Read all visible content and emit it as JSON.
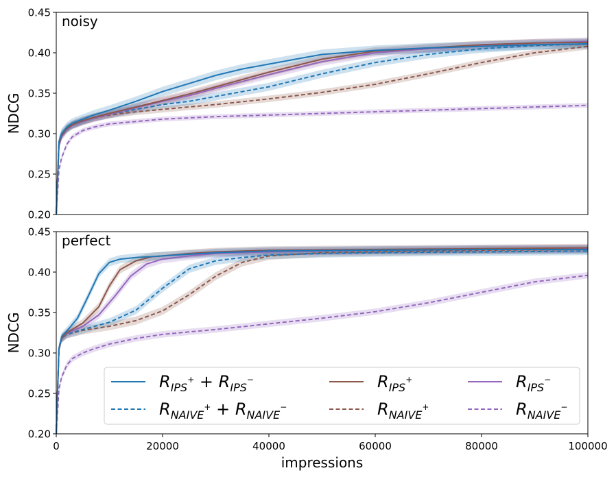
{
  "chart_data": {
    "type": "line",
    "x_label": "impressions",
    "y_label": "NDCG",
    "xlim": [
      0,
      100000
    ],
    "ylim": [
      0.2,
      0.45
    ],
    "x_ticks": [
      "0",
      "20000",
      "40000",
      "60000",
      "80000",
      "100000"
    ],
    "x_tick_values": [
      0,
      20000,
      40000,
      60000,
      80000,
      100000
    ],
    "y_ticks": [
      "0.20",
      "0.25",
      "0.30",
      "0.35",
      "0.40",
      "0.45"
    ],
    "y_tick_values": [
      0.2,
      0.25,
      0.3,
      0.35,
      0.4,
      0.45
    ],
    "colors": {
      "blue": "#1f77b4",
      "brown": "#8c564b",
      "purple": "#9467bd"
    },
    "legend": {
      "position": "lower-right",
      "entries": [
        {
          "key": "ips_both",
          "base1": "R",
          "sub1": "IPS",
          "sup1": "+",
          "plus": " + ",
          "base2": "R",
          "sub2": "IPS",
          "sup2": "−",
          "color": "#1f77b4",
          "dashed": false
        },
        {
          "key": "naive_both",
          "base1": "R",
          "sub1": "NAIVE",
          "sup1": "+",
          "plus": " + ",
          "base2": "R",
          "sub2": "NAIVE",
          "sup2": "−",
          "color": "#1f77b4",
          "dashed": true
        },
        {
          "key": "ips_pos",
          "base1": "R",
          "sub1": "IPS",
          "sup1": "+",
          "color": "#8c564b",
          "dashed": false
        },
        {
          "key": "naive_pos",
          "base1": "R",
          "sub1": "NAIVE",
          "sup1": "+",
          "color": "#8c564b",
          "dashed": true
        },
        {
          "key": "ips_neg",
          "base1": "R",
          "sub1": "IPS",
          "sup1": "−",
          "color": "#9467bd",
          "dashed": false
        },
        {
          "key": "naive_neg",
          "base1": "R",
          "sub1": "NAIVE",
          "sup1": "−",
          "color": "#9467bd",
          "dashed": true
        }
      ]
    },
    "panels": [
      {
        "title": "noisy",
        "series": [
          {
            "key": "naive_neg",
            "color": "#9467bd",
            "dashed": true,
            "band": 0.003,
            "x": [
              0,
              500,
              1000,
              2000,
              3000,
              5000,
              7000,
              10000,
              15000,
              20000,
              30000,
              40000,
              50000,
              60000,
              70000,
              80000,
              90000,
              100000
            ],
            "y": [
              0.2,
              0.255,
              0.27,
              0.287,
              0.296,
              0.304,
              0.308,
              0.312,
              0.315,
              0.318,
              0.321,
              0.323,
              0.325,
              0.327,
              0.329,
              0.331,
              0.333,
              0.335
            ]
          },
          {
            "key": "naive_pos",
            "color": "#8c564b",
            "dashed": true,
            "band": 0.004,
            "x": [
              0,
              500,
              1000,
              2000,
              3000,
              5000,
              7000,
              10000,
              15000,
              20000,
              30000,
              40000,
              50000,
              60000,
              70000,
              80000,
              90000,
              100000
            ],
            "y": [
              0.2,
              0.285,
              0.298,
              0.306,
              0.31,
              0.315,
              0.319,
              0.323,
              0.327,
              0.33,
              0.336,
              0.343,
              0.351,
              0.361,
              0.374,
              0.388,
              0.4,
              0.408
            ]
          },
          {
            "key": "naive_both",
            "color": "#1f77b4",
            "dashed": true,
            "band": 0.005,
            "x": [
              0,
              500,
              1000,
              2000,
              3000,
              5000,
              7000,
              10000,
              15000,
              20000,
              25000,
              30000,
              40000,
              50000,
              60000,
              70000,
              80000,
              90000,
              100000
            ],
            "y": [
              0.2,
              0.29,
              0.3,
              0.307,
              0.311,
              0.316,
              0.32,
              0.324,
              0.33,
              0.336,
              0.34,
              0.346,
              0.358,
              0.374,
              0.388,
              0.398,
              0.405,
              0.409,
              0.411
            ]
          },
          {
            "key": "ips_neg",
            "color": "#9467bd",
            "dashed": false,
            "band": 0.005,
            "x": [
              0,
              500,
              1000,
              2000,
              3000,
              5000,
              7000,
              10000,
              15000,
              20000,
              25000,
              30000,
              40000,
              50000,
              60000,
              70000,
              80000,
              90000,
              100000
            ],
            "y": [
              0.2,
              0.285,
              0.296,
              0.305,
              0.31,
              0.315,
              0.319,
              0.324,
              0.332,
              0.34,
              0.347,
              0.356,
              0.373,
              0.389,
              0.4,
              0.405,
              0.409,
              0.412,
              0.414
            ]
          },
          {
            "key": "ips_pos",
            "color": "#8c564b",
            "dashed": false,
            "band": 0.005,
            "x": [
              0,
              500,
              1000,
              2000,
              3000,
              5000,
              7000,
              10000,
              15000,
              20000,
              25000,
              30000,
              40000,
              50000,
              60000,
              70000,
              80000,
              90000,
              100000
            ],
            "y": [
              0.2,
              0.287,
              0.298,
              0.306,
              0.311,
              0.316,
              0.32,
              0.325,
              0.333,
              0.341,
              0.349,
              0.358,
              0.376,
              0.392,
              0.402,
              0.406,
              0.41,
              0.412,
              0.413
            ]
          },
          {
            "key": "ips_both",
            "color": "#1f77b4",
            "dashed": false,
            "band": 0.006,
            "x": [
              0,
              500,
              1000,
              2000,
              3000,
              5000,
              7000,
              10000,
              15000,
              20000,
              25000,
              30000,
              35000,
              40000,
              50000,
              60000,
              70000,
              80000,
              90000,
              100000
            ],
            "y": [
              0.2,
              0.29,
              0.3,
              0.308,
              0.313,
              0.318,
              0.323,
              0.329,
              0.34,
              0.352,
              0.362,
              0.372,
              0.38,
              0.386,
              0.398,
              0.403,
              0.406,
              0.408,
              0.41,
              0.411
            ]
          }
        ]
      },
      {
        "title": "perfect",
        "series": [
          {
            "key": "naive_neg",
            "color": "#9467bd",
            "dashed": true,
            "band": 0.004,
            "x": [
              0,
              500,
              1000,
              2000,
              3000,
              5000,
              7000,
              10000,
              15000,
              20000,
              25000,
              30000,
              40000,
              50000,
              60000,
              70000,
              80000,
              90000,
              100000
            ],
            "y": [
              0.2,
              0.255,
              0.27,
              0.285,
              0.293,
              0.3,
              0.305,
              0.311,
              0.318,
              0.323,
              0.326,
              0.329,
              0.336,
              0.343,
              0.351,
              0.362,
              0.375,
              0.388,
              0.396
            ]
          },
          {
            "key": "naive_pos",
            "color": "#8c564b",
            "dashed": true,
            "band": 0.005,
            "x": [
              0,
              500,
              1000,
              2000,
              5000,
              10000,
              15000,
              20000,
              25000,
              30000,
              35000,
              40000,
              50000,
              60000,
              80000,
              100000
            ],
            "y": [
              0.2,
              0.305,
              0.318,
              0.323,
              0.328,
              0.333,
              0.34,
              0.352,
              0.372,
              0.395,
              0.412,
              0.42,
              0.424,
              0.425,
              0.427,
              0.428
            ]
          },
          {
            "key": "naive_both",
            "color": "#1f77b4",
            "dashed": true,
            "band": 0.005,
            "x": [
              0,
              500,
              1000,
              2000,
              5000,
              10000,
              15000,
              20000,
              25000,
              30000,
              35000,
              40000,
              50000,
              60000,
              80000,
              100000
            ],
            "y": [
              0.2,
              0.305,
              0.318,
              0.323,
              0.329,
              0.338,
              0.353,
              0.38,
              0.404,
              0.414,
              0.418,
              0.421,
              0.423,
              0.424,
              0.425,
              0.426
            ]
          },
          {
            "key": "ips_neg",
            "color": "#9467bd",
            "dashed": false,
            "band": 0.005,
            "x": [
              0,
              500,
              1000,
              2000,
              5000,
              8000,
              11000,
              14000,
              17000,
              20000,
              25000,
              30000,
              40000,
              60000,
              80000,
              100000
            ],
            "y": [
              0.2,
              0.305,
              0.318,
              0.324,
              0.333,
              0.347,
              0.37,
              0.395,
              0.41,
              0.416,
              0.42,
              0.423,
              0.425,
              0.427,
              0.428,
              0.429
            ]
          },
          {
            "key": "ips_pos",
            "color": "#8c564b",
            "dashed": false,
            "band": 0.005,
            "x": [
              0,
              500,
              1000,
              2000,
              5000,
              8000,
              10000,
              12000,
              15000,
              18000,
              20000,
              25000,
              30000,
              40000,
              60000,
              80000,
              100000
            ],
            "y": [
              0.2,
              0.305,
              0.318,
              0.325,
              0.337,
              0.357,
              0.383,
              0.403,
              0.414,
              0.419,
              0.42,
              0.423,
              0.425,
              0.427,
              0.428,
              0.429,
              0.43
            ]
          },
          {
            "key": "ips_both",
            "color": "#1f77b4",
            "dashed": false,
            "band": 0.005,
            "x": [
              0,
              500,
              1000,
              2000,
              4000,
              6000,
              8000,
              10000,
              12000,
              15000,
              20000,
              25000,
              30000,
              40000,
              60000,
              80000,
              100000
            ],
            "y": [
              0.2,
              0.305,
              0.32,
              0.327,
              0.343,
              0.37,
              0.398,
              0.412,
              0.416,
              0.418,
              0.42,
              0.422,
              0.424,
              0.426,
              0.427,
              0.428,
              0.428
            ]
          }
        ]
      }
    ]
  }
}
